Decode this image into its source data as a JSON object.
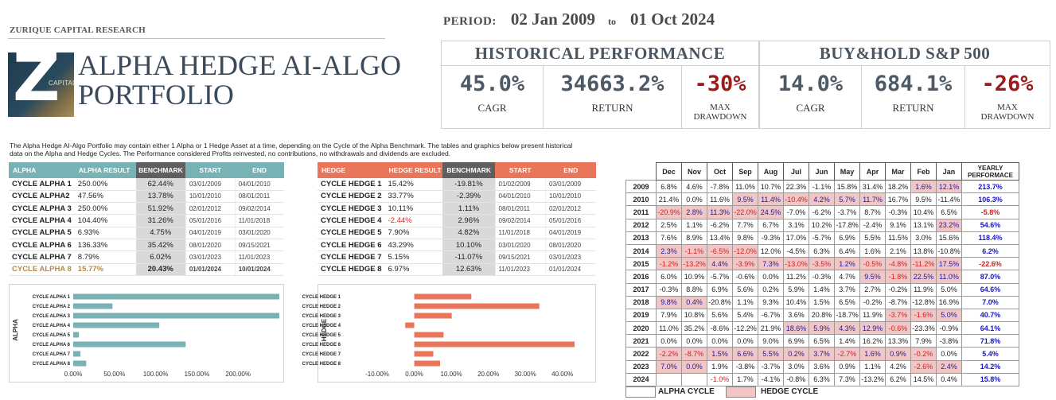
{
  "header": {
    "company": "ZURIQUE CAPITAL RESEARCH",
    "logo_letter": "Z",
    "logo_caption": "CAPITAL",
    "title_line1": "ALPHA HEDGE AI-ALGO",
    "title_line2": "PORTFOLIO"
  },
  "period": {
    "label": "PERIOD:",
    "start": "02 Jan 2009",
    "to": "to",
    "end": "01 Oct 2024"
  },
  "historical": {
    "title": "HISTORICAL PERFORMANCE",
    "cagr": "45.0%",
    "cagr_label": "CAGR",
    "ret": "34663.2%",
    "ret_label": "RETURN",
    "dd": "-30%",
    "dd_label1": "MAX",
    "dd_label2": "DRAWDOWN"
  },
  "buyhold": {
    "title": "BUY&HOLD S&P 500",
    "cagr": "14.0%",
    "cagr_label": "CAGR",
    "ret": "684.1%",
    "ret_label": "RETURN",
    "dd": "-26%",
    "dd_label1": "MAX",
    "dd_label2": "DRAWDOWN"
  },
  "description": "The Alpha Hedge AI-Algo Portfolio may contain either 1 Alpha or 1 Hedge Asset at a time, depending on the Cycle of the Alpha Benchmark. The tables and graphics below present historical data on the Alpha and Hedge Cycles. The Performance considered Profits reinvested, no contributions, no withdrawals and dividends are excluded.",
  "alpha_table": {
    "headers": [
      "ALPHA",
      "ALPHA RESULT",
      "BENCHMARK",
      "START",
      "END"
    ],
    "rows": [
      {
        "name": "CYCLE ALPHA 1",
        "result": "250.00%",
        "bench": "62.44%",
        "start": "03/01/2009",
        "end": "04/01/2010"
      },
      {
        "name": "CYCLE ALPHA2",
        "result": "47.56%",
        "bench": "13.78%",
        "start": "10/01/2010",
        "end": "08/01/2011"
      },
      {
        "name": "CYCLE ALPHA 3",
        "result": "250.00%",
        "bench": "51.92%",
        "start": "02/01/2012",
        "end": "09/02/2014"
      },
      {
        "name": "CYCLE ALPHA 4",
        "result": "104.40%",
        "bench": "31.26%",
        "start": "05/01/2016",
        "end": "11/01/2018"
      },
      {
        "name": "CYCLE ALPHA 5",
        "result": "6.93%",
        "bench": "4.75%",
        "start": "04/01/2019",
        "end": "03/01/2020"
      },
      {
        "name": "CYCLE ALPHA 6",
        "result": "136.33%",
        "bench": "35.42%",
        "start": "08/01/2020",
        "end": "09/15/2021"
      },
      {
        "name": "CYCLE ALPHA 7",
        "result": "8.79%",
        "bench": "6.02%",
        "start": "03/01/2023",
        "end": "11/01/2023"
      },
      {
        "name": "CYCLE ALPHA 8",
        "result": "15.77%",
        "bench": "20.43%",
        "start": "01/01/2024",
        "end": "10/01/2024"
      }
    ]
  },
  "hedge_table": {
    "headers": [
      "HEDGE",
      "HEDGE RESULT",
      "BENCHMARK",
      "START",
      "END"
    ],
    "rows": [
      {
        "name": "CYCLE HEDGE 1",
        "result": "15.42%",
        "bench": "-19.81%",
        "start": "01/02/2009",
        "end": "03/01/2009"
      },
      {
        "name": "CYCLE HEDGE 2",
        "result": "33.77%",
        "bench": "-2.39%",
        "start": "04/01/2010",
        "end": "10/01/2010"
      },
      {
        "name": "CYCLE HEDGE 3",
        "result": "10.11%",
        "bench": "1.11%",
        "start": "08/01/2011",
        "end": "02/01/2012"
      },
      {
        "name": "CYCLE HEDGE 4",
        "result": "-2.44%",
        "bench": "2.96%",
        "start": "09/02/2014",
        "end": "05/01/2016"
      },
      {
        "name": "CYCLE HEDGE 5",
        "result": "7.90%",
        "bench": "4.82%",
        "start": "11/01/2018",
        "end": "04/01/2019"
      },
      {
        "name": "CYCLE HEDGE 6",
        "result": "43.29%",
        "bench": "10.10%",
        "start": "03/01/2020",
        "end": "08/01/2020"
      },
      {
        "name": "CYCLE HEDGE 7",
        "result": "5.15%",
        "bench": "-11.07%",
        "start": "09/15/2021",
        "end": "03/01/2023"
      },
      {
        "name": "CYCLE HEDGE 8",
        "result": "6.97%",
        "bench": "12.63%",
        "start": "11/01/2023",
        "end": "01/01/2024"
      }
    ]
  },
  "matrix": {
    "months": [
      "Dec",
      "Nov",
      "Oct",
      "Sep",
      "Aug",
      "Jul",
      "Jun",
      "May",
      "Apr",
      "Mar",
      "Feb",
      "Jan"
    ],
    "yearly_header1": "YEARLY",
    "yearly_header2": "PERFORMACE",
    "rows": [
      {
        "year": "2009",
        "cells": [
          [
            "6.8%",
            0
          ],
          [
            "4.6%",
            0
          ],
          [
            "-7.8%",
            0
          ],
          [
            "11.0%",
            0
          ],
          [
            "10.7%",
            0
          ],
          [
            "22.3%",
            0
          ],
          [
            "-1.1%",
            0
          ],
          [
            "15.8%",
            0
          ],
          [
            "31.4%",
            0
          ],
          [
            "18.2%",
            0
          ],
          [
            "1.6%",
            1
          ],
          [
            "12.1%",
            1
          ]
        ],
        "yearly": "213.7%"
      },
      {
        "year": "2010",
        "cells": [
          [
            "21.4%",
            0
          ],
          [
            "0.0%",
            0
          ],
          [
            "11.6%",
            0
          ],
          [
            "9.5%",
            1
          ],
          [
            "11.4%",
            1
          ],
          [
            "-10.4%",
            1
          ],
          [
            "4.2%",
            1
          ],
          [
            "5.7%",
            1
          ],
          [
            "11.7%",
            1
          ],
          [
            "16.7%",
            0
          ],
          [
            "9.5%",
            0
          ],
          [
            "-11.4%",
            0
          ]
        ],
        "yearly": "106.3%"
      },
      {
        "year": "2011",
        "cells": [
          [
            "-20.9%",
            1
          ],
          [
            "2.8%",
            1
          ],
          [
            "11.3%",
            1
          ],
          [
            "-22.0%",
            1
          ],
          [
            "24.5%",
            1
          ],
          [
            "-7.0%",
            0
          ],
          [
            "-6.2%",
            0
          ],
          [
            "-3.7%",
            0
          ],
          [
            "8.7%",
            0
          ],
          [
            "-0.3%",
            0
          ],
          [
            "10.4%",
            0
          ],
          [
            "6.5%",
            0
          ]
        ],
        "yearly": "-5.8%"
      },
      {
        "year": "2012",
        "cells": [
          [
            "2.5%",
            0
          ],
          [
            "1.1%",
            0
          ],
          [
            "-6.2%",
            0
          ],
          [
            "7.7%",
            0
          ],
          [
            "6.7%",
            0
          ],
          [
            "3.1%",
            0
          ],
          [
            "10.2%",
            0
          ],
          [
            "-17.8%",
            0
          ],
          [
            "-2.4%",
            0
          ],
          [
            "9.1%",
            0
          ],
          [
            "13.1%",
            0
          ],
          [
            "23.2%",
            1
          ]
        ],
        "yearly": "54.6%"
      },
      {
        "year": "2013",
        "cells": [
          [
            "7.6%",
            0
          ],
          [
            "8.9%",
            0
          ],
          [
            "13.4%",
            0
          ],
          [
            "9.8%",
            0
          ],
          [
            "-9.3%",
            0
          ],
          [
            "17.0%",
            0
          ],
          [
            "-5.7%",
            0
          ],
          [
            "6.9%",
            0
          ],
          [
            "5.5%",
            0
          ],
          [
            "11.5%",
            0
          ],
          [
            "3.0%",
            0
          ],
          [
            "15.6%",
            0
          ]
        ],
        "yearly": "118.4%"
      },
      {
        "year": "2014",
        "cells": [
          [
            "2.3%",
            1
          ],
          [
            "-1.1%",
            1
          ],
          [
            "-6.5%",
            1
          ],
          [
            "-12.0%",
            1
          ],
          [
            "12.0%",
            0
          ],
          [
            "-4.5%",
            0
          ],
          [
            "6.3%",
            0
          ],
          [
            "6.4%",
            0
          ],
          [
            "1.6%",
            0
          ],
          [
            "2.1%",
            0
          ],
          [
            "13.8%",
            0
          ],
          [
            "-10.8%",
            0
          ]
        ],
        "yearly": "6.2%"
      },
      {
        "year": "2015",
        "cells": [
          [
            "-1.2%",
            1
          ],
          [
            "-13.2%",
            1
          ],
          [
            "4.4%",
            1
          ],
          [
            "-3.9%",
            1
          ],
          [
            "7.3%",
            1
          ],
          [
            "-13.0%",
            1
          ],
          [
            "-3.5%",
            1
          ],
          [
            "1.2%",
            1
          ],
          [
            "-0.5%",
            1
          ],
          [
            "-4.8%",
            1
          ],
          [
            "-11.2%",
            1
          ],
          [
            "17.5%",
            1
          ]
        ],
        "yearly": "-22.6%"
      },
      {
        "year": "2016",
        "cells": [
          [
            "6.0%",
            0
          ],
          [
            "10.9%",
            0
          ],
          [
            "-5.7%",
            0
          ],
          [
            "-0.6%",
            0
          ],
          [
            "0.0%",
            0
          ],
          [
            "11.2%",
            0
          ],
          [
            "-0.3%",
            0
          ],
          [
            "4.7%",
            0
          ],
          [
            "9.5%",
            1
          ],
          [
            "-1.8%",
            1
          ],
          [
            "22.5%",
            1
          ],
          [
            "11.0%",
            1
          ]
        ],
        "yearly": "87.0%"
      },
      {
        "year": "2017",
        "cells": [
          [
            "-0.3%",
            0
          ],
          [
            "8.8%",
            0
          ],
          [
            "6.9%",
            0
          ],
          [
            "5.6%",
            0
          ],
          [
            "0.2%",
            0
          ],
          [
            "5.9%",
            0
          ],
          [
            "1.4%",
            0
          ],
          [
            "3.7%",
            0
          ],
          [
            "2.7%",
            0
          ],
          [
            "-0.2%",
            0
          ],
          [
            "11.9%",
            0
          ],
          [
            "5.0%",
            0
          ]
        ],
        "yearly": "64.6%"
      },
      {
        "year": "2018",
        "cells": [
          [
            "9.8%",
            1
          ],
          [
            "0.4%",
            1
          ],
          [
            "-20.8%",
            0
          ],
          [
            "1.1%",
            0
          ],
          [
            "9.3%",
            0
          ],
          [
            "10.4%",
            0
          ],
          [
            "1.5%",
            0
          ],
          [
            "6.5%",
            0
          ],
          [
            "-0.2%",
            0
          ],
          [
            "-8.7%",
            0
          ],
          [
            "-12.8%",
            0
          ],
          [
            "16.9%",
            0
          ]
        ],
        "yearly": "7.0%"
      },
      {
        "year": "2019",
        "cells": [
          [
            "7.9%",
            0
          ],
          [
            "10.8%",
            0
          ],
          [
            "5.6%",
            0
          ],
          [
            "5.4%",
            0
          ],
          [
            "-6.7%",
            0
          ],
          [
            "3.6%",
            0
          ],
          [
            "20.8%",
            0
          ],
          [
            "-18.7%",
            0
          ],
          [
            "11.9%",
            0
          ],
          [
            "-3.7%",
            1
          ],
          [
            "-1.6%",
            1
          ],
          [
            "5.0%",
            1
          ]
        ],
        "yearly": "40.7%"
      },
      {
        "year": "2020",
        "cells": [
          [
            "11.0%",
            0
          ],
          [
            "35.2%",
            0
          ],
          [
            "-8.6%",
            0
          ],
          [
            "-12.2%",
            0
          ],
          [
            "21.9%",
            0
          ],
          [
            "18.6%",
            1
          ],
          [
            "5.9%",
            1
          ],
          [
            "4.3%",
            1
          ],
          [
            "12.9%",
            1
          ],
          [
            "-0.6%",
            1
          ],
          [
            "-23.3%",
            0
          ],
          [
            "-0.9%",
            0
          ]
        ],
        "yearly": "64.1%"
      },
      {
        "year": "2021",
        "cells": [
          [
            "0.0%",
            0
          ],
          [
            "0.0%",
            0
          ],
          [
            "0.0%",
            0
          ],
          [
            "0.0%",
            0
          ],
          [
            "9.0%",
            0
          ],
          [
            "6.9%",
            0
          ],
          [
            "6.5%",
            0
          ],
          [
            "1.4%",
            0
          ],
          [
            "16.2%",
            0
          ],
          [
            "13.3%",
            0
          ],
          [
            "7.9%",
            0
          ],
          [
            "-3.8%",
            0
          ]
        ],
        "yearly": "71.8%"
      },
      {
        "year": "2022",
        "cells": [
          [
            "-2.2%",
            1
          ],
          [
            "-8.7%",
            1
          ],
          [
            "1.5%",
            1
          ],
          [
            "6.6%",
            1
          ],
          [
            "5.5%",
            1
          ],
          [
            "0.2%",
            1
          ],
          [
            "3.7%",
            1
          ],
          [
            "-2.7%",
            1
          ],
          [
            "1.6%",
            1
          ],
          [
            "0.9%",
            1
          ],
          [
            "-0.2%",
            1
          ],
          [
            "0.0%",
            0
          ]
        ],
        "yearly": "5.4%"
      },
      {
        "year": "2023",
        "cells": [
          [
            "7.0%",
            1
          ],
          [
            "0.0%",
            1
          ],
          [
            "1.9%",
            0
          ],
          [
            "-3.8%",
            0
          ],
          [
            "-3.7%",
            0
          ],
          [
            "3.0%",
            0
          ],
          [
            "3.6%",
            0
          ],
          [
            "0.9%",
            0
          ],
          [
            "1.1%",
            0
          ],
          [
            "4.2%",
            0
          ],
          [
            "-2.6%",
            1
          ],
          [
            "2.4%",
            1
          ]
        ],
        "yearly": "14.2%"
      },
      {
        "year": "2024",
        "cells": [
          [
            "",
            0
          ],
          [
            "",
            0
          ],
          [
            "-1.0%",
            0
          ],
          [
            "1.7%",
            0
          ],
          [
            "-4.1%",
            0
          ],
          [
            "-0.8%",
            0
          ],
          [
            "6.3%",
            0
          ],
          [
            "7.3%",
            0
          ],
          [
            "-13.2%",
            0
          ],
          [
            "6.2%",
            0
          ],
          [
            "14.5%",
            0
          ],
          [
            "0.4%",
            0
          ]
        ],
        "yearly": "15.8%"
      }
    ]
  },
  "legend": {
    "alpha": "ALPHA CYCLE",
    "hedge": "HEDGE CYCLE"
  },
  "colors": {
    "alpha": "#78b2b4",
    "hedge": "#e9765b",
    "hedge_cell": "#f3c6c6",
    "gold": "#b38a4a"
  },
  "chart_data": [
    {
      "type": "bar",
      "orientation": "horizontal",
      "ylabel": "ALPHA",
      "categories": [
        "CYCLE ALPHA 1",
        "CYCLE ALPHA 2",
        "CYCLE ALPHA 3",
        "CYCLE ALPHA 4",
        "CYCLE ALPHA 5",
        "CYCLE ALPHA 6",
        "CYCLE ALPHA 7",
        "CYCLE ALPHA 8"
      ],
      "values": [
        250.0,
        47.56,
        250.0,
        104.4,
        6.93,
        136.33,
        8.79,
        15.77
      ],
      "xlim": [
        0,
        250
      ],
      "ticks": [
        0,
        50,
        100,
        150,
        200
      ],
      "tick_labels": [
        "0.00%",
        "50.00%",
        "100.00%",
        "150.00%",
        "200.00%"
      ],
      "color": "#78b2b4"
    },
    {
      "type": "bar",
      "orientation": "horizontal",
      "ylabel": "HEDGE",
      "categories": [
        "CYCLE HEDGE 1",
        "CYCLE HEDGE 2",
        "CYCLE HEDGE 3",
        "CYCLE HEDGE 4",
        "CYCLE HEDGE 5",
        "CYCLE HEDGE 6",
        "CYCLE HEDGE 7",
        "CYCLE HEDGE 8"
      ],
      "values": [
        15.42,
        33.77,
        10.11,
        -2.44,
        7.9,
        43.29,
        5.15,
        6.97
      ],
      "xlim": [
        -10,
        45
      ],
      "ticks": [
        -10,
        0,
        10,
        20,
        30,
        40
      ],
      "tick_labels": [
        "-10.00%",
        "0.00%",
        "10.00%",
        "20.00%",
        "30.00%",
        "40.00%"
      ],
      "color": "#e9765b"
    }
  ]
}
